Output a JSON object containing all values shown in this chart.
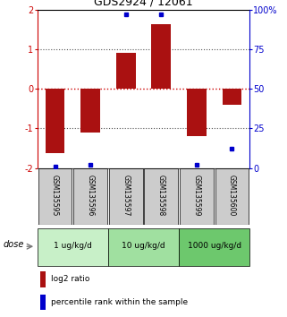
{
  "title": "GDS2924 / 12061",
  "samples": [
    "GSM135595",
    "GSM135596",
    "GSM135597",
    "GSM135598",
    "GSM135599",
    "GSM135600"
  ],
  "log2_ratio": [
    -1.62,
    -1.1,
    0.9,
    1.62,
    -1.2,
    -0.4
  ],
  "percentile_rank": [
    1,
    2,
    97,
    97,
    2,
    12
  ],
  "dose_groups": [
    {
      "label": "1 ug/kg/d",
      "samples": [
        0,
        1
      ],
      "color": "#c8f0c8"
    },
    {
      "label": "10 ug/kg/d",
      "samples": [
        2,
        3
      ],
      "color": "#a0e0a0"
    },
    {
      "label": "1000 ug/kg/d",
      "samples": [
        4,
        5
      ],
      "color": "#6dc86d"
    }
  ],
  "bar_color": "#aa1111",
  "dot_color": "#0000cc",
  "left_ylim": [
    -2,
    2
  ],
  "right_ylim": [
    0,
    100
  ],
  "left_yticks": [
    -2,
    -1,
    0,
    1,
    2
  ],
  "right_yticks": [
    0,
    25,
    50,
    75,
    100
  ],
  "right_yticklabels": [
    "0",
    "25",
    "50",
    "75",
    "100%"
  ],
  "hline_zero_color": "#cc0000",
  "hline_pm1_color": "#555555",
  "sample_bg_color": "#cccccc",
  "dose_label": "dose",
  "legend_red_label": "log2 ratio",
  "legend_blue_label": "percentile rank within the sample"
}
